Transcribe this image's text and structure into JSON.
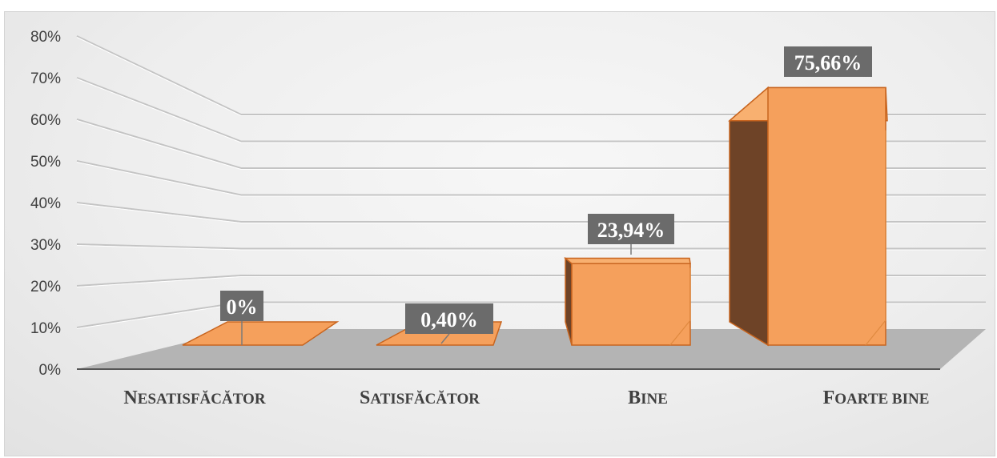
{
  "chart_data": {
    "type": "bar",
    "categories": [
      "Nesatisfăcător",
      "Satisfăcător",
      "Bine",
      "Foarte bine"
    ],
    "values": [
      0,
      0.4,
      23.94,
      75.66
    ],
    "data_labels": [
      "0%",
      "0,40%",
      "23,94%",
      "75,66%"
    ],
    "y_ticks": [
      "0%",
      "10%",
      "20%",
      "30%",
      "40%",
      "50%",
      "60%",
      "70%",
      "80%"
    ],
    "ylim": [
      0,
      80
    ],
    "grid": true,
    "style": "3d-columns",
    "colors": {
      "front": "#f5a05c",
      "top": "#f8b070",
      "side": "#6e4327",
      "edge": "#c8651f",
      "floor": "#b4b4b4",
      "label_bg": "#6b6b6b"
    }
  }
}
